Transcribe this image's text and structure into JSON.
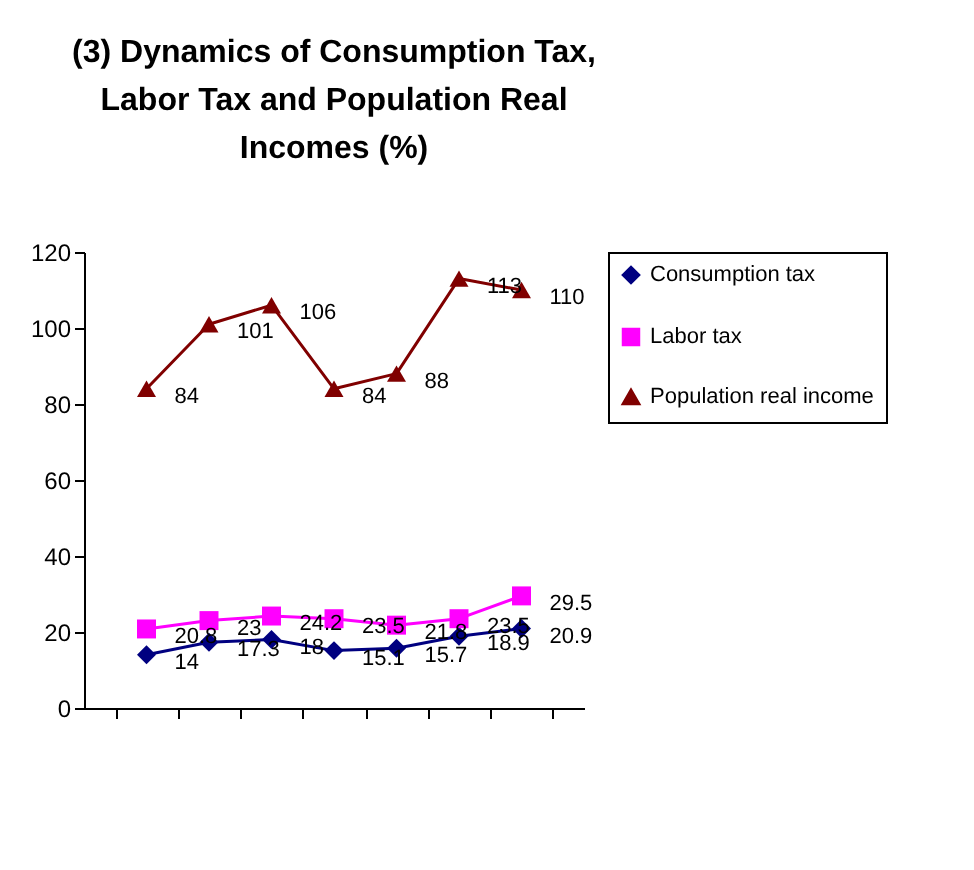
{
  "chart_data": {
    "type": "line",
    "title": "(3) Dynamics of Consumption Tax, Labor Tax and Population Real Incomes (%)",
    "categories": [
      null,
      null,
      null,
      null,
      null,
      null,
      null
    ],
    "series": [
      {
        "name": "Consumption tax",
        "color": "#000080",
        "marker": "diamond",
        "values": [
          14,
          17.3,
          18,
          15.1,
          15.7,
          18.9,
          20.9
        ]
      },
      {
        "name": "Labor tax",
        "color": "#ff00ff",
        "marker": "square",
        "values": [
          20.8,
          23,
          24.2,
          23.5,
          21.8,
          23.5,
          29.5
        ]
      },
      {
        "name": "Population real income",
        "color": "#800000",
        "marker": "triangle",
        "values": [
          84,
          101,
          106,
          84,
          88,
          113,
          110
        ]
      }
    ],
    "ylim": [
      0,
      120
    ],
    "yticks": [
      0,
      20,
      40,
      60,
      80,
      100,
      120
    ],
    "data_labels": true,
    "legend": "right",
    "grid": false
  }
}
